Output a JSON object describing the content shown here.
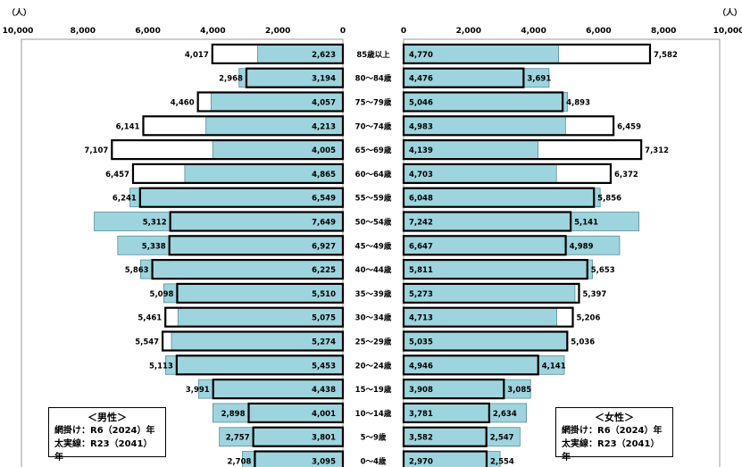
{
  "unit_left": "（人）",
  "unit_right": "（人）",
  "legend_male": {
    "title": "＜男性＞",
    "line1": "網掛け：R6（2024）年",
    "line2": "太実線：R23（2041）年"
  },
  "legend_female": {
    "title": "＜女性＞",
    "line1": "網掛け：R6（2024）年",
    "line2": "太実線：R23（2041）年"
  },
  "colors": {
    "fill_2024": "#9dd4dd",
    "line_2041": "#000000",
    "frame": "#999999"
  },
  "chart_data": {
    "type": "bar",
    "orientation": "horizontal",
    "subtype": "population-pyramid",
    "title": "",
    "xlim": [
      0,
      10000
    ],
    "left_ticks": [
      "10,000",
      "8,000",
      "6,000",
      "4,000",
      "2,000",
      "0"
    ],
    "right_ticks": [
      "0",
      "2,000",
      "4,000",
      "6,000",
      "8,000",
      "10,000"
    ],
    "categories": [
      "85歳以上",
      "80～84歳",
      "75～79歳",
      "70～74歳",
      "65～69歳",
      "60～64歳",
      "55～59歳",
      "50～54歳",
      "45～49歳",
      "40～44歳",
      "35～39歳",
      "30～34歳",
      "25～29歳",
      "20～24歳",
      "15～19歳",
      "10～14歳",
      "5～9歳",
      "0～4歳"
    ],
    "male_2024": [
      2623,
      3194,
      4057,
      4213,
      4005,
      4865,
      6549,
      7649,
      6927,
      6225,
      5510,
      5075,
      5274,
      5453,
      4438,
      4001,
      3801,
      3095
    ],
    "male_2041": [
      4017,
      2968,
      4460,
      6141,
      7107,
      6457,
      6241,
      5312,
      5338,
      5863,
      5098,
      5461,
      5547,
      5113,
      3991,
      2898,
      2757,
      2708
    ],
    "female_2024": [
      4770,
      4476,
      5046,
      4983,
      4139,
      4703,
      6048,
      7242,
      6647,
      5811,
      5273,
      4713,
      5035,
      4946,
      3908,
      3781,
      3582,
      2970
    ],
    "female_2041": [
      7582,
      3691,
      4893,
      6459,
      7312,
      6372,
      5856,
      5141,
      4989,
      5653,
      5397,
      5206,
      5036,
      4141,
      3085,
      2634,
      2547,
      2554
    ],
    "male_2024_labels": [
      "2,623",
      "3,194",
      "4,057",
      "4,213",
      "4,005",
      "4,865",
      "6,549",
      "7,649",
      "6,927",
      "6,225",
      "5,510",
      "5,075",
      "5,274",
      "5,453",
      "4,438",
      "4,001",
      "3,801",
      "3,095"
    ],
    "male_2041_labels": [
      "4,017",
      "2,968",
      "4,460",
      "6,141",
      "7,107",
      "6,457",
      "6,241",
      "5,312",
      "5,338",
      "5,863",
      "5,098",
      "5,461",
      "5,547",
      "5,113",
      "3,991",
      "2,898",
      "2,757",
      "2,708"
    ],
    "female_2024_labels": [
      "4,770",
      "4,476",
      "5,046",
      "4,983",
      "4,139",
      "4,703",
      "6,048",
      "7,242",
      "6,647",
      "5,811",
      "5,273",
      "4,713",
      "5,035",
      "4,946",
      "3,908",
      "3,781",
      "3,582",
      "2,970"
    ],
    "female_2041_labels": [
      "7,582",
      "3,691",
      "4,893",
      "6,459",
      "7,312",
      "6,372",
      "5,856",
      "5,141",
      "4,989",
      "5,653",
      "5,397",
      "5,206",
      "5,036",
      "4,141",
      "3,085",
      "2,634",
      "2,547",
      "2,554"
    ]
  }
}
